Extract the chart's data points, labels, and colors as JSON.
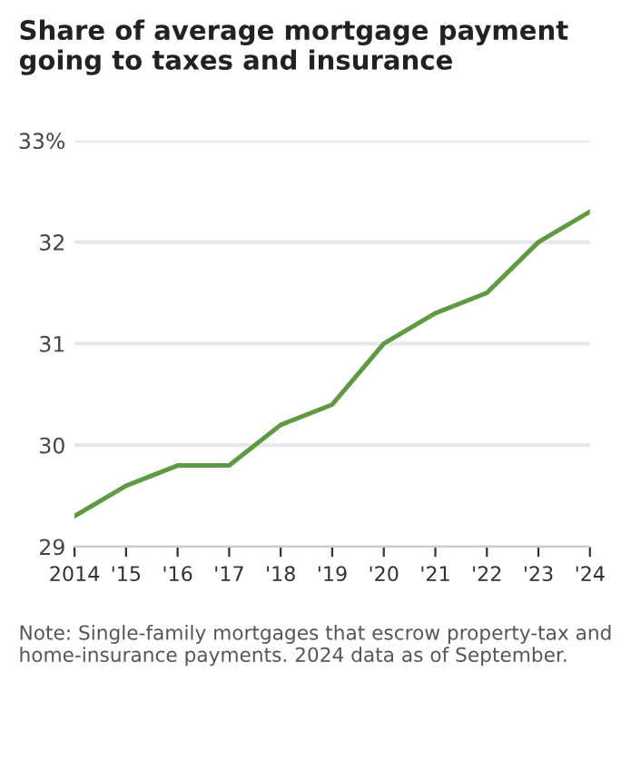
{
  "chart_data": {
    "type": "line",
    "title": "Share of average mortgage payment going to taxes and insurance",
    "x": [
      2014,
      2015,
      2016,
      2017,
      2018,
      2019,
      2020,
      2021,
      2022,
      2023,
      2024
    ],
    "series": [
      {
        "color": "#5e9a44",
        "values": [
          29.3,
          29.6,
          29.8,
          29.8,
          30.2,
          30.4,
          31.0,
          31.3,
          31.5,
          32.0,
          32.3
        ]
      }
    ],
    "xlim": [
      2014,
      2024
    ],
    "xticks": [
      2014,
      {
        "value": 2015,
        "label": "'15"
      },
      {
        "value": 2016,
        "label": "'16"
      },
      {
        "value": 2017,
        "label": "'17"
      },
      {
        "value": 2018,
        "label": "'18"
      },
      {
        "value": 2019,
        "label": "'19"
      },
      {
        "value": 2020,
        "label": "'20"
      },
      {
        "value": 2021,
        "label": "'21"
      },
      {
        "value": 2022,
        "label": "'22"
      },
      {
        "value": 2023,
        "label": "'23"
      },
      {
        "value": 2024,
        "label": "'24"
      }
    ],
    "ylim": [
      29,
      33
    ],
    "yticks": [
      29,
      30,
      31,
      32,
      {
        "value": 33,
        "label": "33%"
      }
    ],
    "grid": "y",
    "annotations": [
      "Note: Single-family mortgages that escrow property-tax and home-insurance payments. 2024 data as of September."
    ]
  }
}
